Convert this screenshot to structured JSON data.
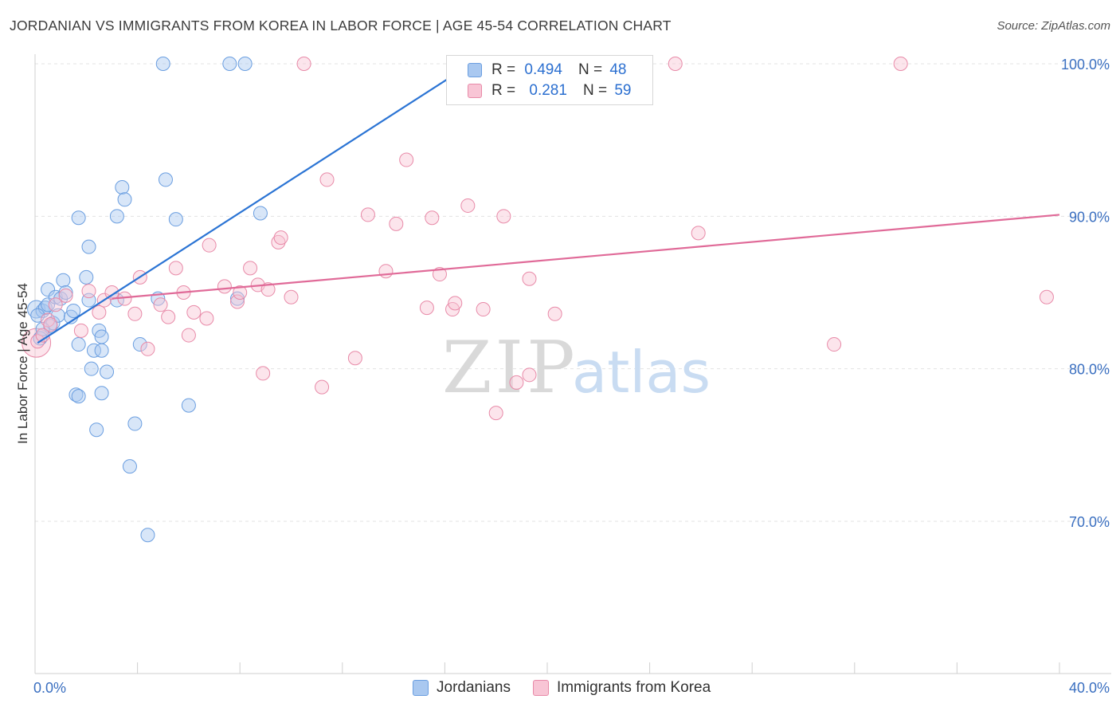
{
  "title": "JORDANIAN VS IMMIGRANTS FROM KOREA IN LABOR FORCE | AGE 45-54 CORRELATION CHART",
  "source": "Source: ZipAtlas.com",
  "watermark": {
    "zip": "ZIP",
    "atlas": "atlas"
  },
  "legend": {
    "r_label": "R =",
    "n_label": "N =",
    "rows": [
      {
        "r": "0.494",
        "n": "48",
        "color": "#a9c8f0",
        "border": "#6a9ee0"
      },
      {
        "r": "0.281",
        "n": "59",
        "color": "#f8c5d5",
        "border": "#e88aa8"
      }
    ]
  },
  "bottom_legend": [
    {
      "label": "Jordanians",
      "color": "#a9c8f0",
      "border": "#6a9ee0"
    },
    {
      "label": "Immigrants from Korea",
      "color": "#f8c5d5",
      "border": "#e88aa8"
    }
  ],
  "chart_data": {
    "type": "scatter",
    "xlabel": "",
    "ylabel": "In Labor Force | Age 45-54",
    "xlim": [
      0,
      40
    ],
    "ylim": [
      60,
      102
    ],
    "x_tick_labels": [
      "0.0%",
      "40.0%"
    ],
    "y_ticks": [
      70,
      80,
      90,
      100
    ],
    "y_tick_labels": [
      "70.0%",
      "80.0%",
      "90.0%",
      "100.0%"
    ],
    "series": [
      {
        "name": "Jordanians",
        "color": "#6a9ee0",
        "fill": "rgba(169,200,240,0.45)",
        "line_color": "#2b74d4",
        "trend": {
          "x0": 0.1,
          "y0": 81.7,
          "x1": 17.5,
          "y1": 100.5
        },
        "points": [
          [
            0.2,
            82.0
          ],
          [
            0.3,
            83.8
          ],
          [
            0.4,
            84.0
          ],
          [
            0.5,
            84.2
          ],
          [
            0.6,
            82.8
          ],
          [
            0.5,
            85.2
          ],
          [
            0.7,
            83.0
          ],
          [
            0.8,
            84.7
          ],
          [
            0.9,
            83.5
          ],
          [
            1.0,
            84.6
          ],
          [
            1.1,
            85.8
          ],
          [
            1.2,
            85.0
          ],
          [
            1.4,
            83.4
          ],
          [
            1.5,
            83.8
          ],
          [
            1.6,
            78.3
          ],
          [
            1.7,
            78.2
          ],
          [
            1.7,
            81.6
          ],
          [
            1.7,
            89.9
          ],
          [
            2.0,
            86.0
          ],
          [
            2.1,
            84.5
          ],
          [
            2.1,
            88.0
          ],
          [
            2.2,
            80.0
          ],
          [
            2.3,
            81.2
          ],
          [
            2.4,
            76.0
          ],
          [
            2.5,
            82.5
          ],
          [
            2.6,
            82.1
          ],
          [
            2.6,
            81.2
          ],
          [
            2.6,
            78.4
          ],
          [
            2.8,
            79.8
          ],
          [
            3.2,
            90.0
          ],
          [
            3.2,
            84.5
          ],
          [
            3.4,
            91.9
          ],
          [
            3.5,
            91.1
          ],
          [
            3.7,
            73.6
          ],
          [
            3.9,
            76.4
          ],
          [
            4.1,
            81.6
          ],
          [
            4.4,
            69.1
          ],
          [
            4.8,
            84.6
          ],
          [
            5.0,
            100.0
          ],
          [
            5.1,
            92.4
          ],
          [
            5.5,
            89.8
          ],
          [
            6.0,
            77.6
          ],
          [
            7.6,
            100.0
          ],
          [
            7.9,
            84.6
          ],
          [
            8.2,
            100.0
          ],
          [
            8.8,
            90.2
          ],
          [
            0.1,
            83.5
          ],
          [
            0.3,
            82.6
          ]
        ]
      },
      {
        "name": "Immigrants from Korea",
        "color": "#e88aa8",
        "fill": "rgba(248,197,213,0.45)",
        "line_color": "#e06a98",
        "trend": {
          "x0": 3.0,
          "y0": 84.6,
          "x1": 40.0,
          "y1": 90.1
        },
        "points": [
          [
            0.1,
            81.8
          ],
          [
            0.3,
            82.2
          ],
          [
            0.5,
            83.2
          ],
          [
            0.8,
            84.2
          ],
          [
            1.2,
            84.8
          ],
          [
            1.8,
            82.5
          ],
          [
            2.1,
            85.1
          ],
          [
            2.5,
            83.7
          ],
          [
            2.7,
            84.5
          ],
          [
            3.0,
            85.0
          ],
          [
            3.5,
            84.6
          ],
          [
            3.9,
            83.6
          ],
          [
            4.1,
            86.0
          ],
          [
            4.4,
            81.3
          ],
          [
            4.9,
            84.2
          ],
          [
            5.2,
            83.4
          ],
          [
            5.5,
            86.6
          ],
          [
            5.8,
            85.0
          ],
          [
            6.0,
            82.2
          ],
          [
            6.2,
            83.7
          ],
          [
            6.7,
            83.3
          ],
          [
            6.8,
            88.1
          ],
          [
            7.4,
            85.4
          ],
          [
            7.9,
            84.4
          ],
          [
            8.0,
            85.0
          ],
          [
            8.4,
            86.6
          ],
          [
            8.7,
            85.5
          ],
          [
            8.9,
            79.7
          ],
          [
            9.1,
            85.2
          ],
          [
            9.5,
            88.3
          ],
          [
            9.6,
            88.6
          ],
          [
            10.0,
            84.7
          ],
          [
            10.5,
            100.0
          ],
          [
            11.2,
            78.8
          ],
          [
            11.4,
            92.4
          ],
          [
            12.5,
            80.7
          ],
          [
            13.0,
            90.1
          ],
          [
            13.7,
            86.4
          ],
          [
            14.1,
            89.5
          ],
          [
            14.5,
            93.7
          ],
          [
            15.3,
            84.0
          ],
          [
            15.5,
            89.9
          ],
          [
            15.8,
            86.2
          ],
          [
            16.3,
            83.9
          ],
          [
            16.4,
            84.3
          ],
          [
            16.9,
            90.7
          ],
          [
            17.5,
            83.9
          ],
          [
            18.0,
            77.1
          ],
          [
            18.3,
            90.0
          ],
          [
            18.8,
            79.1
          ],
          [
            19.3,
            79.6
          ],
          [
            19.3,
            85.9
          ],
          [
            20.3,
            83.6
          ],
          [
            25.0,
            100.0
          ],
          [
            25.9,
            88.9
          ],
          [
            31.2,
            81.6
          ],
          [
            33.8,
            100.0
          ],
          [
            39.5,
            84.7
          ],
          [
            0.6,
            82.9
          ]
        ]
      }
    ]
  }
}
